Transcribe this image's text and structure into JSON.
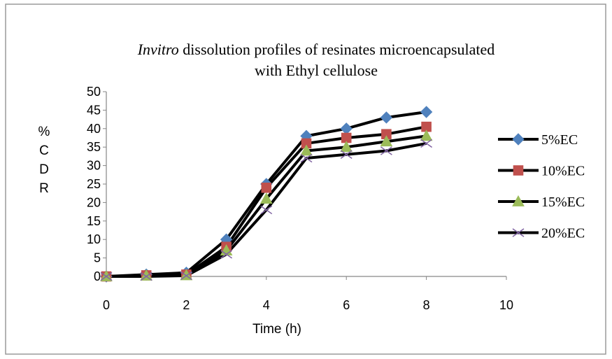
{
  "chart_data": {
    "type": "line",
    "title_prefix_italic": "Invitro",
    "title_line1_rest": " dissolution profiles of  resinates  microencapsulated",
    "title_line2": "with Ethyl cellulose",
    "xlabel": "Time (h)",
    "ylabel_chars": [
      "%",
      "C",
      "D",
      "R"
    ],
    "xlim": [
      0,
      10
    ],
    "ylim": [
      0,
      50
    ],
    "xticks": [
      0,
      2,
      4,
      6,
      8,
      10
    ],
    "yticks": [
      0,
      5,
      10,
      15,
      20,
      25,
      30,
      35,
      40,
      45,
      50
    ],
    "grid": false,
    "legend_position": "right",
    "x": [
      0,
      1,
      2,
      3,
      4,
      5,
      6,
      7,
      8
    ],
    "series": [
      {
        "name": "5%EC",
        "marker": "diamond",
        "color": "#4F81BD",
        "values": [
          0,
          0.5,
          1,
          10,
          25,
          38,
          40,
          43,
          44.5
        ]
      },
      {
        "name": "10%EC",
        "marker": "square",
        "color": "#C0504D",
        "values": [
          0,
          0.3,
          0.5,
          8,
          24,
          36,
          37.5,
          38.5,
          40.5
        ]
      },
      {
        "name": "15%EC",
        "marker": "triangle",
        "color": "#9BBB59",
        "values": [
          0,
          0.2,
          0.3,
          7,
          21,
          34,
          35,
          36.5,
          38
        ]
      },
      {
        "name": "20%EC",
        "marker": "x",
        "color": "#8064A2",
        "values": [
          0,
          0,
          0.2,
          6,
          18,
          32,
          33,
          34,
          36
        ]
      }
    ]
  }
}
